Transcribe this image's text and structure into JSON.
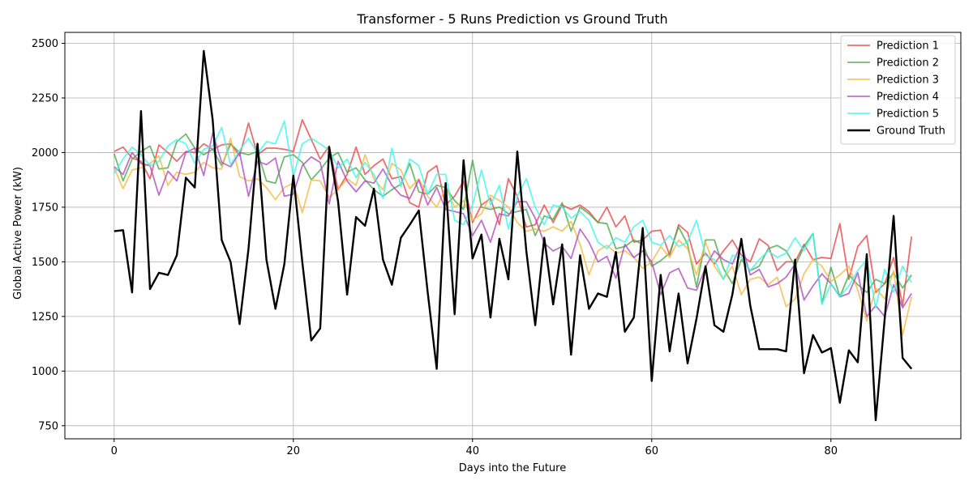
{
  "chart_data": {
    "type": "line",
    "title": "Transformer - 5 Runs Prediction vs Ground Truth",
    "xlabel": "Days into the Future",
    "ylabel": "Global Active Power (kW)",
    "xlim": [
      -5.5,
      94.5
    ],
    "ylim": [
      690,
      2550
    ],
    "xticks": [
      0,
      20,
      40,
      60,
      80
    ],
    "yticks": [
      750,
      1000,
      1250,
      1500,
      1750,
      2000,
      2250,
      2500
    ],
    "grid": true,
    "legend_position": "top-right",
    "x": [
      0,
      1,
      2,
      3,
      4,
      5,
      6,
      7,
      8,
      9,
      10,
      11,
      12,
      13,
      14,
      15,
      16,
      17,
      18,
      19,
      20,
      21,
      22,
      23,
      24,
      25,
      26,
      27,
      28,
      29,
      30,
      31,
      32,
      33,
      34,
      35,
      36,
      37,
      38,
      39,
      40,
      41,
      42,
      43,
      44,
      45,
      46,
      47,
      48,
      49,
      50,
      51,
      52,
      53,
      54,
      55,
      56,
      57,
      58,
      59,
      60,
      61,
      62,
      63,
      64,
      65,
      66,
      67,
      68,
      69,
      70,
      71,
      72,
      73,
      74,
      75,
      76,
      77,
      78,
      79,
      80,
      81,
      82,
      83,
      84,
      85,
      86,
      87,
      88,
      89
    ],
    "series": [
      {
        "name": "Prediction 1",
        "color": "#e8484a",
        "width": 1.8,
        "opacity": 0.8,
        "values": [
          2005,
          2025,
          1975,
          1960,
          1880,
          2035,
          2000,
          1960,
          2005,
          2000,
          2040,
          2015,
          2035,
          2040,
          1985,
          2135,
          1990,
          2020,
          2020,
          2015,
          2005,
          2150,
          2060,
          1970,
          2030,
          1830,
          1900,
          2025,
          1900,
          1940,
          1970,
          1880,
          1890,
          1770,
          1750,
          1910,
          1940,
          1760,
          1800,
          1870,
          1680,
          1760,
          1790,
          1670,
          1880,
          1800,
          1660,
          1670,
          1760,
          1680,
          1760,
          1740,
          1760,
          1730,
          1680,
          1750,
          1660,
          1710,
          1590,
          1600,
          1640,
          1645,
          1530,
          1670,
          1635,
          1490,
          1540,
          1490,
          1550,
          1600,
          1530,
          1500,
          1605,
          1575,
          1460,
          1500,
          1500,
          1580,
          1510,
          1520,
          1515,
          1675,
          1420,
          1570,
          1620,
          1360,
          1400,
          1520,
          1300,
          1615
        ]
      },
      {
        "name": "Prediction 2",
        "color": "#4caa4c",
        "width": 1.8,
        "opacity": 0.8,
        "values": [
          1995,
          1870,
          1970,
          2005,
          2030,
          1925,
          1930,
          2050,
          2085,
          2020,
          1990,
          2015,
          1940,
          2040,
          2000,
          1990,
          2005,
          1870,
          1860,
          1980,
          1990,
          1955,
          1875,
          1920,
          1975,
          2000,
          1910,
          1930,
          1875,
          1830,
          1800,
          1830,
          1855,
          1950,
          1820,
          1810,
          1850,
          1840,
          1780,
          1740,
          1965,
          1750,
          1740,
          1750,
          1720,
          1730,
          1740,
          1620,
          1710,
          1695,
          1770,
          1640,
          1750,
          1720,
          1680,
          1675,
          1560,
          1570,
          1600,
          1580,
          1480,
          1505,
          1540,
          1660,
          1580,
          1385,
          1600,
          1600,
          1470,
          1400,
          1510,
          1460,
          1480,
          1560,
          1575,
          1550,
          1480,
          1570,
          1630,
          1310,
          1475,
          1340,
          1440,
          1395,
          1360,
          1420,
          1400,
          1450,
          1380,
          1440
        ]
      },
      {
        "name": "Prediction 3",
        "color": "#f5b942",
        "width": 1.8,
        "opacity": 0.8,
        "values": [
          1930,
          1835,
          1920,
          1930,
          1950,
          1985,
          1850,
          1910,
          1900,
          1910,
          1955,
          1930,
          1925,
          2065,
          1890,
          1870,
          1880,
          1840,
          1785,
          1840,
          1860,
          1725,
          1875,
          1870,
          1795,
          1830,
          1880,
          1850,
          1990,
          1880,
          1830,
          1950,
          1920,
          1835,
          1880,
          1800,
          1750,
          1840,
          1750,
          1780,
          1690,
          1720,
          1805,
          1780,
          1750,
          1680,
          1640,
          1650,
          1640,
          1660,
          1640,
          1685,
          1580,
          1440,
          1550,
          1575,
          1540,
          1550,
          1520,
          1470,
          1500,
          1570,
          1520,
          1600,
          1560,
          1440,
          1590,
          1480,
          1420,
          1480,
          1350,
          1420,
          1430,
          1395,
          1430,
          1295,
          1330,
          1445,
          1510,
          1480,
          1410,
          1440,
          1480,
          1370,
          1230,
          1380,
          1330,
          1460,
          1165,
          1340
        ]
      },
      {
        "name": "Prediction 4",
        "color": "#b04cc0",
        "width": 1.8,
        "opacity": 0.8,
        "values": [
          1935,
          1900,
          2000,
          1950,
          1940,
          1805,
          1915,
          1870,
          2000,
          2020,
          1895,
          2090,
          1955,
          1935,
          2000,
          1800,
          1960,
          1945,
          1975,
          1800,
          1810,
          1940,
          1980,
          1955,
          1765,
          1960,
          1870,
          1820,
          1870,
          1860,
          1925,
          1850,
          1805,
          1790,
          1875,
          1760,
          1840,
          1740,
          1730,
          1720,
          1620,
          1690,
          1590,
          1720,
          1710,
          1775,
          1775,
          1700,
          1585,
          1550,
          1570,
          1515,
          1650,
          1590,
          1500,
          1525,
          1425,
          1580,
          1520,
          1550,
          1500,
          1350,
          1450,
          1470,
          1380,
          1370,
          1475,
          1550,
          1510,
          1490,
          1585,
          1440,
          1465,
          1385,
          1400,
          1430,
          1490,
          1325,
          1390,
          1445,
          1400,
          1340,
          1355,
          1450,
          1250,
          1300,
          1250,
          1395,
          1290,
          1355
        ]
      },
      {
        "name": "Prediction 5",
        "color": "#3ff5f0",
        "width": 1.8,
        "opacity": 0.8,
        "values": [
          1905,
          1970,
          2025,
          1990,
          1940,
          1960,
          2030,
          2060,
          2040,
          1950,
          2015,
          2030,
          2115,
          1945,
          2010,
          2065,
          1995,
          2050,
          2040,
          2145,
          1890,
          2040,
          2065,
          2040,
          2010,
          1930,
          1970,
          1885,
          1955,
          1900,
          1790,
          2020,
          1845,
          1970,
          1940,
          1810,
          1900,
          1900,
          1690,
          1670,
          1760,
          1920,
          1760,
          1850,
          1650,
          1800,
          1880,
          1750,
          1670,
          1760,
          1750,
          1700,
          1730,
          1690,
          1590,
          1560,
          1610,
          1590,
          1660,
          1690,
          1590,
          1575,
          1620,
          1570,
          1590,
          1690,
          1530,
          1510,
          1420,
          1530,
          1520,
          1460,
          1510,
          1550,
          1520,
          1540,
          1610,
          1550,
          1630,
          1305,
          1400,
          1340,
          1390,
          1460,
          1510,
          1290,
          1465,
          1360,
          1480,
          1405
        ]
      },
      {
        "name": "Ground Truth",
        "color": "#000000",
        "width": 2.4,
        "opacity": 1,
        "values": [
          1640,
          1645,
          1360,
          2190,
          1375,
          1450,
          1440,
          1530,
          1885,
          1840,
          2465,
          2150,
          1600,
          1500,
          1215,
          1560,
          2040,
          1510,
          1285,
          1490,
          1895,
          1500,
          1140,
          1195,
          2025,
          1775,
          1350,
          1705,
          1665,
          1835,
          1510,
          1395,
          1610,
          1670,
          1735,
          1360,
          1010,
          1860,
          1260,
          1965,
          1515,
          1625,
          1245,
          1605,
          1420,
          2005,
          1550,
          1210,
          1610,
          1305,
          1580,
          1075,
          1530,
          1285,
          1355,
          1340,
          1545,
          1180,
          1245,
          1655,
          955,
          1440,
          1090,
          1355,
          1035,
          1240,
          1480,
          1210,
          1180,
          1350,
          1605,
          1300,
          1100,
          1100,
          1100,
          1090,
          1510,
          990,
          1165,
          1085,
          1105,
          855,
          1095,
          1040,
          1535,
          775,
          1240,
          1710,
          1060,
          1010
        ]
      }
    ]
  }
}
